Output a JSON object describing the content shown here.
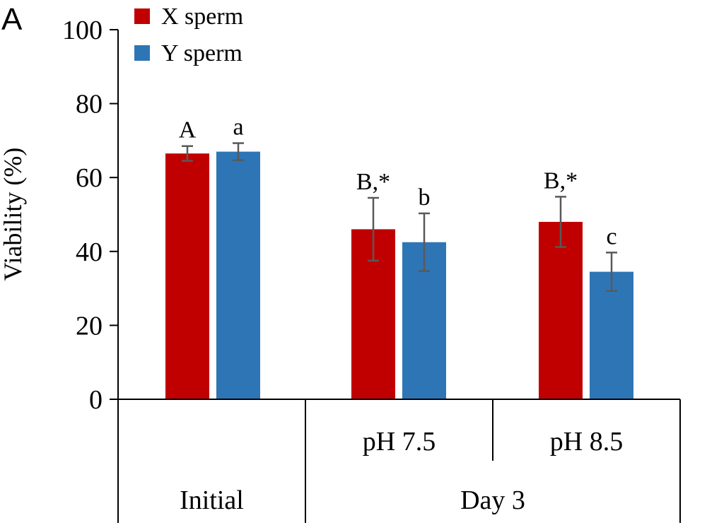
{
  "panel_label": "A",
  "colors": {
    "x_sperm": "#c00000",
    "y_sperm": "#2e75b6",
    "error_bar": "#595959",
    "axis": "#000000"
  },
  "chart_data": {
    "type": "bar",
    "title": "",
    "ylabel": "Viability (%)",
    "ylim": [
      0,
      100
    ],
    "yticks": [
      0,
      20,
      40,
      60,
      80,
      100
    ],
    "grid": false,
    "legend_position": "top-left",
    "categories": [
      "Initial",
      "pH 7.5",
      "pH 8.5"
    ],
    "category_groups": [
      {
        "label": "Initial",
        "categories": [
          "Initial"
        ]
      },
      {
        "label": "Day 3",
        "categories": [
          "pH 7.5",
          "pH 8.5"
        ]
      }
    ],
    "category_sublabels": [
      "",
      "pH 7.5",
      "pH 8.5"
    ],
    "series": [
      {
        "name": "X sperm",
        "values": [
          66.5,
          46,
          48
        ],
        "errors": [
          2,
          8.5,
          6.8
        ],
        "labels": [
          "A",
          "B,*",
          "B,*"
        ]
      },
      {
        "name": "Y sperm",
        "values": [
          67,
          42.5,
          34.5
        ],
        "errors": [
          2.3,
          7.8,
          5.2
        ],
        "labels": [
          "a",
          "b",
          "c"
        ]
      }
    ]
  }
}
